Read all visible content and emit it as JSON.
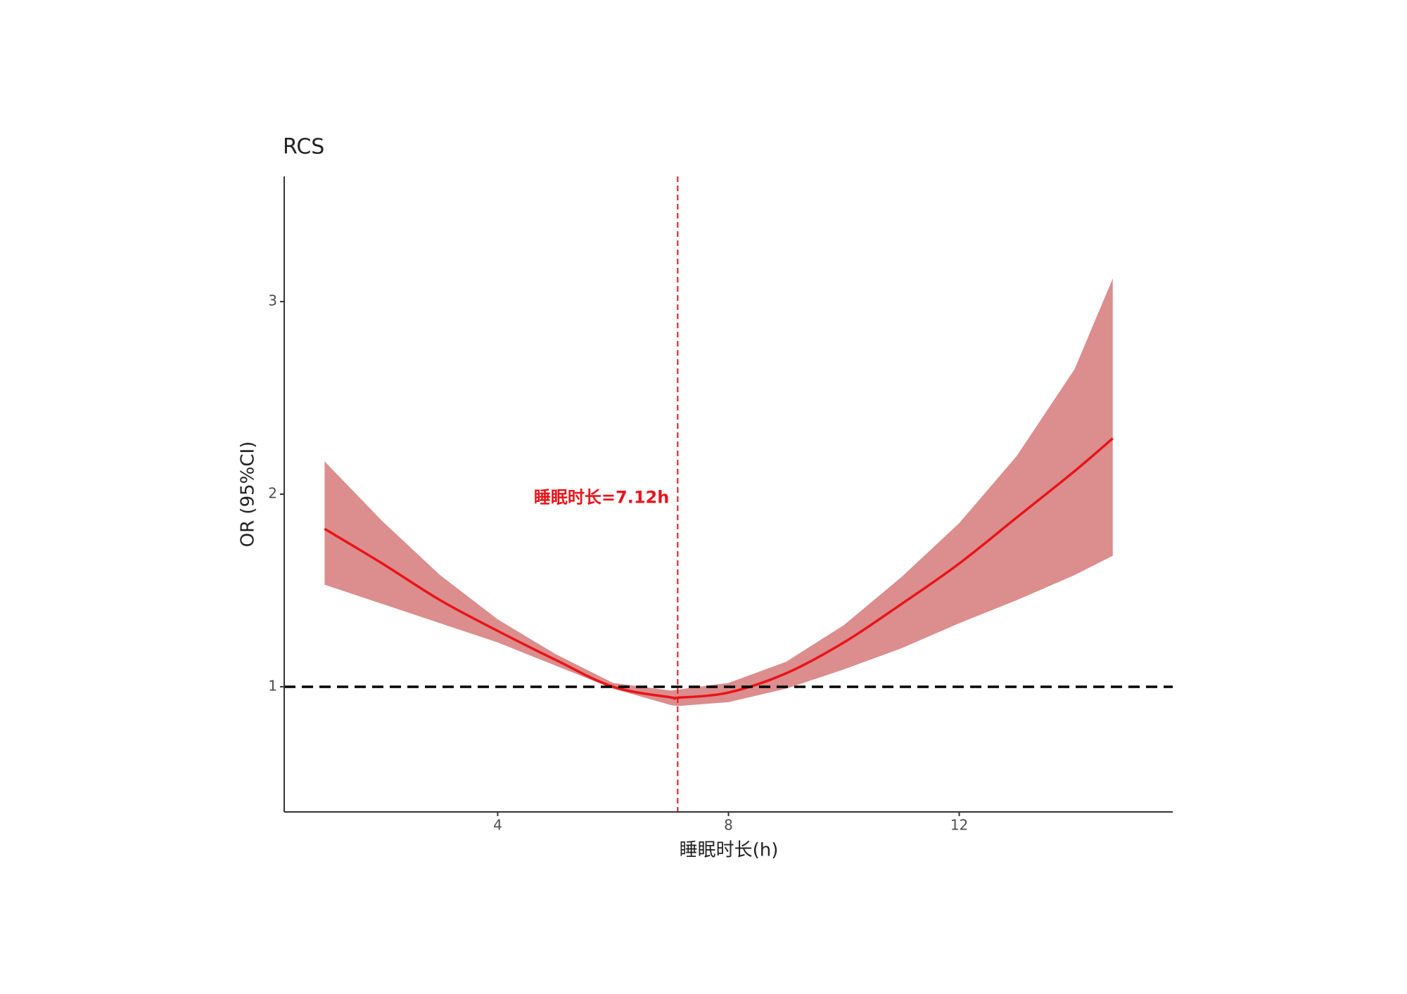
{
  "chart_data": {
    "type": "rcs",
    "title": "RCS",
    "x_label": "睡眠时长(h)",
    "y_label": "OR (95%CI)",
    "annotation": "睡眠时长=7.12h",
    "x": [
      1,
      2,
      3,
      4,
      5,
      6,
      7,
      7.12,
      8,
      9,
      10,
      11,
      12,
      13,
      14,
      14.66
    ],
    "values": [
      1.82,
      1.64,
      1.45,
      1.29,
      1.14,
      1.0,
      0.945,
      0.943,
      0.97,
      1.07,
      1.23,
      1.43,
      1.64,
      1.88,
      2.12,
      2.29
    ],
    "lower": [
      1.53,
      1.43,
      1.33,
      1.23,
      1.11,
      0.99,
      0.905,
      0.9,
      0.92,
      0.99,
      1.09,
      1.2,
      1.33,
      1.45,
      1.58,
      1.68
    ],
    "upper": [
      2.17,
      1.86,
      1.58,
      1.35,
      1.17,
      1.02,
      0.98,
      0.985,
      1.02,
      1.13,
      1.32,
      1.57,
      1.85,
      2.2,
      2.65,
      3.12
    ],
    "line_color": "#e8141a",
    "band_color": "#dc8d8d",
    "ref_line_color": "#000000",
    "vline": 7.12,
    "vline_color": "#e8141a",
    "hline": 1,
    "xlim": [
      0.3,
      15.7
    ],
    "xticks": [
      4,
      8,
      12
    ],
    "ylim": [
      0.35,
      3.65
    ],
    "yticks": [
      1,
      2,
      3
    ],
    "grid": false
  }
}
